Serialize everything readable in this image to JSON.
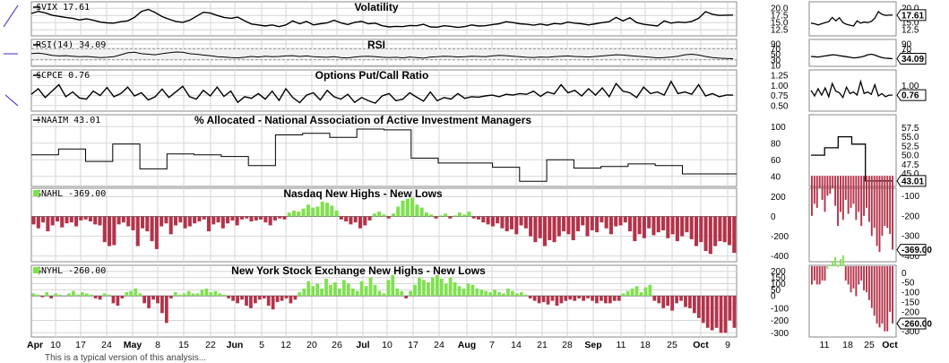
{
  "chart_data": [
    {
      "id": "vix",
      "type": "line",
      "title": "Volatility",
      "label": "$VIX 17.61",
      "last": "17.61",
      "yticks": [
        "20.0",
        "17.5",
        "15.0",
        "12.5"
      ],
      "ylim": [
        11,
        21
      ],
      "values": [
        18.2,
        18.9,
        18.4,
        17.6,
        17.2,
        16.8,
        16.5,
        15.9,
        16.3,
        15.8,
        15.2,
        14.9,
        14.8,
        15.3,
        15.6,
        16.8,
        18.9,
        19.6,
        18.5,
        17.1,
        16.2,
        15.4,
        15.1,
        15.8,
        17.2,
        18.6,
        18.3,
        17.5,
        16.8,
        16.5,
        16.9,
        15.6,
        14.5,
        14.2,
        13.8,
        14.2,
        13.6,
        14.2,
        15.6,
        14.6,
        15.4,
        14.2,
        14.6,
        14.9,
        15.8,
        14.9,
        14.3,
        15.1,
        15.4,
        14.6,
        14.8,
        13.9,
        13.5,
        13.7,
        13.6,
        14.0,
        13.9,
        14.4,
        13.5,
        13.4,
        13.9,
        13.7,
        13.3,
        13.6,
        14.2,
        13.8,
        13.9,
        14.3,
        14.6,
        15.3,
        15.0,
        14.6,
        14.4,
        14.1,
        14.5,
        14.1,
        14.7,
        14.5,
        15.2,
        14.8,
        14.6,
        14.2,
        14.6,
        15.0,
        15.3,
        16.8,
        15.6,
        16.7,
        15.0,
        14.4,
        14.1,
        13.8,
        15.6,
        14.8,
        15.2,
        15.0,
        15.4,
        16.5,
        18.8,
        17.9,
        17.5,
        17.6,
        17.61
      ]
    },
    {
      "id": "rsi",
      "type": "line",
      "title": "RSI",
      "label": "RSI(14) 34.09",
      "last": "34.09",
      "yticks": [
        "90",
        "70",
        "50",
        "30",
        "10"
      ],
      "ylim": [
        10,
        90
      ],
      "values": [
        52,
        54,
        51,
        46,
        44,
        45,
        43,
        41,
        42,
        40,
        38,
        39,
        41,
        48,
        55,
        57,
        52,
        50,
        48,
        52,
        55,
        58,
        57,
        52,
        50,
        47,
        45,
        41,
        40,
        38,
        37,
        39,
        42,
        40,
        43,
        41,
        42,
        44,
        45,
        42,
        44,
        41,
        40,
        39,
        41,
        38,
        37,
        40,
        42,
        43,
        41,
        39,
        38,
        39,
        37,
        40,
        38,
        36,
        40,
        41,
        43,
        42,
        40,
        41,
        43,
        42,
        41,
        44,
        46,
        45,
        43,
        41,
        39,
        38,
        40,
        39,
        41,
        43,
        44,
        42,
        41,
        40,
        42,
        44,
        46,
        48,
        47,
        45,
        43,
        41,
        39,
        37,
        38,
        40,
        43,
        48,
        50,
        47,
        42,
        38,
        36,
        35,
        34
      ]
    },
    {
      "id": "cpce",
      "type": "line",
      "title": "Options Put/Call Ratio",
      "label": "$CPCE 0.76",
      "last": "0.76",
      "yticks": [
        "1.25",
        "1.00",
        "0.75",
        "0.50"
      ],
      "ylim": [
        0.45,
        1.3
      ],
      "values": [
        0.78,
        0.92,
        0.7,
        0.86,
        1.02,
        0.72,
        0.84,
        0.69,
        0.66,
        0.86,
        0.75,
        0.95,
        0.72,
        0.8,
        0.96,
        0.74,
        0.82,
        0.64,
        0.72,
        0.91,
        0.7,
        0.84,
        0.98,
        0.72,
        0.66,
        0.88,
        0.74,
        0.96,
        0.73,
        0.86,
        0.58,
        0.72,
        0.68,
        0.8,
        0.66,
        0.86,
        0.63,
        0.92,
        0.7,
        0.57,
        0.76,
        0.82,
        0.64,
        0.88,
        0.72,
        0.66,
        0.78,
        0.58,
        0.7,
        0.62,
        0.56,
        0.74,
        0.8,
        0.62,
        0.66,
        0.82,
        0.71,
        0.61,
        0.84,
        0.62,
        0.7,
        0.66,
        0.8,
        0.68,
        0.72,
        0.71,
        0.74,
        0.76,
        0.72,
        0.78,
        0.76,
        0.8,
        0.78,
        0.86,
        0.73,
        0.84,
        0.79,
        1.02,
        0.82,
        0.88,
        0.74,
        0.92,
        0.76,
        0.94,
        0.72,
        1.05,
        0.86,
        0.82,
        0.7,
        0.96,
        0.8,
        0.84,
        0.76,
        1.1,
        0.8,
        0.84,
        0.78,
        1.02,
        0.74,
        0.8,
        0.72,
        0.76,
        0.76
      ]
    },
    {
      "id": "naaim",
      "type": "line",
      "title": "% Allocated - National Association of Active Investment Managers",
      "label": "!NAAIM 43.01",
      "last": "43.01",
      "yticks": [
        "100",
        "80",
        "60",
        "40"
      ],
      "ylim": [
        30,
        110
      ],
      "values": [
        66,
        73,
        58,
        79,
        49,
        67,
        66,
        64,
        53,
        90,
        92,
        87,
        97,
        96,
        62,
        56,
        56,
        51,
        34,
        60,
        50,
        52,
        55,
        53,
        43,
        43.01
      ]
    },
    {
      "id": "nahl",
      "type": "bar",
      "title": "Nasdaq New Highs - New Lows",
      "label": "$NAHL -369.00",
      "last": "-369.00",
      "yticks": [
        "200",
        "0",
        "-200",
        "-400"
      ],
      "ylim": [
        -440,
        250
      ],
      "values": [
        -80,
        -120,
        -60,
        -150,
        -90,
        -50,
        -110,
        -70,
        -60,
        -100,
        -40,
        -30,
        -50,
        -80,
        -90,
        -260,
        -300,
        -290,
        -80,
        -60,
        -100,
        -140,
        -300,
        -120,
        -150,
        -250,
        -330,
        -100,
        -70,
        -180,
        -90,
        -60,
        -120,
        -100,
        -70,
        -50,
        -30,
        -150,
        -80,
        -60,
        -120,
        -70,
        -40,
        -90,
        -30,
        -20,
        -50,
        -40,
        -30,
        -60,
        -90,
        -40,
        -20,
        -30,
        40,
        60,
        50,
        80,
        120,
        90,
        100,
        150,
        140,
        110,
        60,
        -30,
        -50,
        -80,
        -60,
        -120,
        -90,
        -40,
        30,
        50,
        20,
        -20,
        30,
        100,
        160,
        180,
        190,
        120,
        90,
        40,
        20,
        -20,
        10,
        30,
        -20,
        10,
        40,
        20,
        50,
        -20,
        -30,
        -60,
        -80,
        -100,
        -70,
        -120,
        -150,
        -130,
        -180,
        -90,
        -120,
        -200,
        -260,
        -220,
        -300,
        -240,
        -260,
        -200,
        -150,
        -180,
        -240,
        -150,
        -90,
        -200,
        -140,
        -160,
        -60,
        -120,
        -180,
        -100,
        -90,
        -60,
        -150,
        -250,
        -180,
        -220,
        -120,
        -190,
        -160,
        -140,
        -220,
        -180,
        -250,
        -200,
        -160,
        -230,
        -300,
        -260,
        -350,
        -380,
        -300,
        -250,
        -260,
        -290,
        -369
      ]
    },
    {
      "id": "nyhl",
      "type": "bar",
      "title": "New York Stock Exchange New Highs - New Lows",
      "label": "$NYHL -260.00",
      "last": "-260.00",
      "yticks": [
        "200",
        "150",
        "100",
        "50",
        "0",
        "-100",
        "-200",
        "-300"
      ],
      "ylim": [
        -320,
        220
      ],
      "values": [
        20,
        10,
        -10,
        30,
        -20,
        20,
        10,
        0,
        20,
        40,
        10,
        30,
        20,
        10,
        -20,
        -30,
        20,
        10,
        -60,
        -80,
        -20,
        30,
        40,
        60,
        20,
        -60,
        -100,
        -30,
        -60,
        -140,
        -220,
        -20,
        30,
        10,
        20,
        40,
        20,
        20,
        50,
        60,
        30,
        40,
        20,
        10,
        -20,
        -40,
        -60,
        -30,
        -80,
        -100,
        -60,
        -30,
        -20,
        -80,
        -110,
        -50,
        -40,
        -20,
        -60,
        -30,
        30,
        60,
        120,
        80,
        100,
        60,
        140,
        90,
        110,
        60,
        130,
        100,
        60,
        40,
        120,
        80,
        150,
        90,
        40,
        20,
        130,
        170,
        60,
        40,
        -20,
        40,
        90,
        150,
        130,
        110,
        150,
        170,
        140,
        100,
        150,
        110,
        80,
        60,
        100,
        90,
        60,
        50,
        40,
        30,
        50,
        30,
        20,
        60,
        40,
        20,
        30,
        10,
        -20,
        -40,
        -60,
        -50,
        -70,
        -40,
        -80,
        -60,
        -40,
        -30,
        -40,
        -20,
        -40,
        -20,
        -40,
        -60,
        -40,
        -60,
        -60,
        -40,
        -40,
        20,
        40,
        60,
        80,
        30,
        70,
        90,
        -40,
        -60,
        -100,
        -80,
        -120,
        -60,
        -40,
        -90,
        -100,
        -140,
        -180,
        -220,
        -260,
        -280,
        -260,
        -300,
        -300,
        -200,
        -260
      ]
    }
  ],
  "x_dates": {
    "labels": [
      {
        "t": "Apr",
        "bold": true
      },
      {
        "t": "10"
      },
      {
        "t": "17"
      },
      {
        "t": "24"
      },
      {
        "t": "May",
        "bold": true
      },
      {
        "t": "8"
      },
      {
        "t": "15"
      },
      {
        "t": "22"
      },
      {
        "t": "Jun",
        "bold": true
      },
      {
        "t": "5"
      },
      {
        "t": "12"
      },
      {
        "t": "20"
      },
      {
        "t": "26"
      },
      {
        "t": "Jul",
        "bold": true
      },
      {
        "t": "10"
      },
      {
        "t": "17"
      },
      {
        "t": "24"
      },
      {
        "t": "Aug",
        "bold": true
      },
      {
        "t": "7"
      },
      {
        "t": "14"
      },
      {
        "t": "21"
      },
      {
        "t": "28"
      },
      {
        "t": "Sep",
        "bold": true
      },
      {
        "t": "11"
      },
      {
        "t": "18"
      },
      {
        "t": "25"
      },
      {
        "t": "Oct",
        "bold": true
      },
      {
        "t": "9"
      }
    ]
  },
  "zoom_dates": {
    "labels": [
      {
        "t": "11"
      },
      {
        "t": "18"
      },
      {
        "t": "25"
      },
      {
        "t": "Oct",
        "bold": true
      }
    ]
  },
  "zoom_yticks": {
    "vix": [
      "20.0",
      "15.0",
      "12.5"
    ],
    "rsi": [
      "90",
      "70",
      "50"
    ],
    "cpce": [
      "1.00",
      "0.75"
    ],
    "naaim": [
      "57.5",
      "55.0",
      "52.5",
      "50.0",
      "47.5",
      "45.0"
    ],
    "nahl": [
      "-100",
      "-200",
      "-300",
      "-400"
    ],
    "nyhl": [
      "0",
      "-50",
      "-100",
      "-150",
      "-200",
      "-250",
      "-300"
    ]
  },
  "colors": {
    "up": "#7ee24d",
    "down": "#b4334a",
    "line": "#000000",
    "grid": "#d6d6d6",
    "frame": "#8a8a8a"
  },
  "footnote": "This is a typical version of this analysis..."
}
